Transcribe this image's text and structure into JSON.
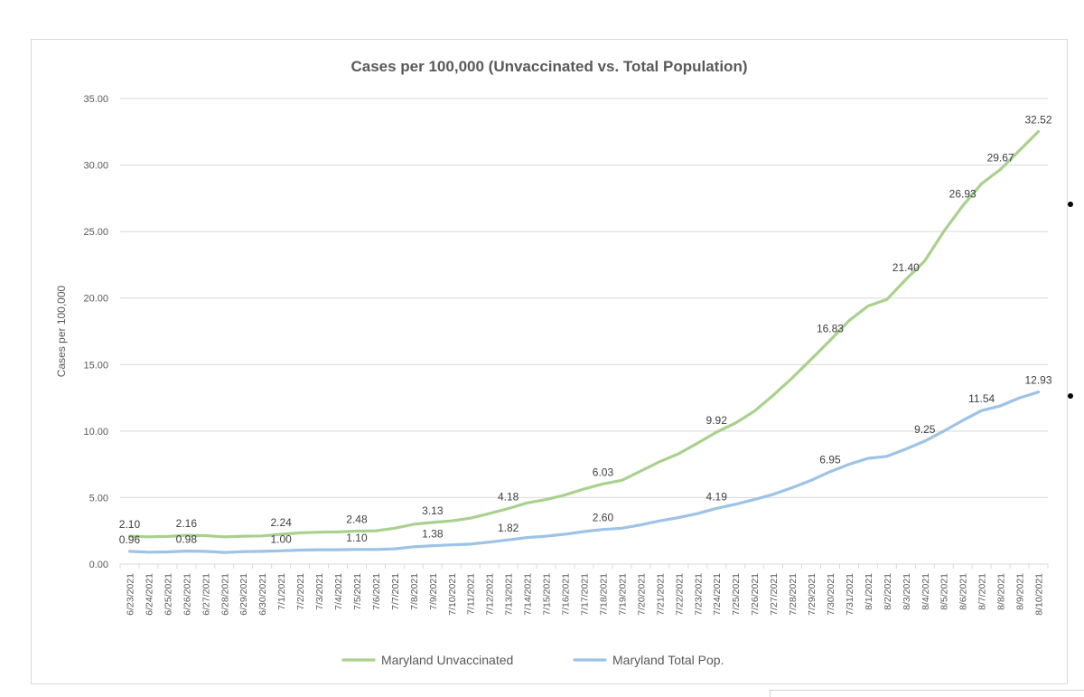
{
  "chart_data": {
    "type": "line",
    "title": "Cases per 100,000 (Unvaccinated vs. Total Population)",
    "xlabel": "",
    "ylabel": "Cases per 100,000",
    "ylim": [
      0,
      35
    ],
    "yticks": [
      "0.00",
      "5.00",
      "10.00",
      "15.00",
      "20.00",
      "25.00",
      "30.00",
      "35.00"
    ],
    "grid": true,
    "legend": "bottom",
    "categories": [
      "6/23/2021",
      "6/24/2021",
      "6/25/2021",
      "6/26/2021",
      "6/27/2021",
      "6/28/2021",
      "6/29/2021",
      "6/30/2021",
      "7/1/2021",
      "7/2/2021",
      "7/3/2021",
      "7/4/2021",
      "7/5/2021",
      "7/6/2021",
      "7/7/2021",
      "7/8/2021",
      "7/9/2021",
      "7/10/2021",
      "7/11/2021",
      "7/12/2021",
      "7/13/2021",
      "7/14/2021",
      "7/15/2021",
      "7/16/2021",
      "7/17/2021",
      "7/18/2021",
      "7/19/2021",
      "7/20/2021",
      "7/21/2021",
      "7/22/2021",
      "7/23/2021",
      "7/24/2021",
      "7/25/2021",
      "7/26/2021",
      "7/27/2021",
      "7/28/2021",
      "7/29/2021",
      "7/30/2021",
      "7/31/2021",
      "8/1/2021",
      "8/2/2021",
      "8/3/2021",
      "8/4/2021",
      "8/5/2021",
      "8/6/2021",
      "8/7/2021",
      "8/8/2021",
      "8/9/2021",
      "8/10/2021"
    ],
    "series": [
      {
        "name": "Maryland Unvaccinated",
        "color": "#a9d18e",
        "values": [
          2.1,
          2.05,
          2.08,
          2.16,
          2.14,
          2.05,
          2.1,
          2.12,
          2.24,
          2.35,
          2.4,
          2.42,
          2.48,
          2.5,
          2.7,
          3.0,
          3.13,
          3.25,
          3.45,
          3.8,
          4.18,
          4.6,
          4.85,
          5.2,
          5.65,
          6.03,
          6.3,
          7.0,
          7.7,
          8.3,
          9.1,
          9.92,
          10.6,
          11.5,
          12.7,
          14.0,
          15.4,
          16.83,
          18.3,
          19.4,
          19.9,
          21.4,
          22.8,
          25.0,
          26.93,
          28.6,
          29.67,
          31.1,
          32.52
        ],
        "labels": {
          "0": "2.10",
          "3": "2.16",
          "8": "2.24",
          "12": "2.48",
          "16": "3.13",
          "20": "4.18",
          "25": "6.03",
          "31": "9.92",
          "37": "16.83",
          "41": "21.40",
          "44": "26.93",
          "46": "29.67",
          "48": "32.52"
        }
      },
      {
        "name": "Maryland Total Pop.",
        "color": "#9dc3e6",
        "values": [
          0.96,
          0.9,
          0.92,
          0.98,
          0.96,
          0.88,
          0.94,
          0.96,
          1.0,
          1.05,
          1.08,
          1.08,
          1.1,
          1.1,
          1.15,
          1.3,
          1.38,
          1.45,
          1.5,
          1.65,
          1.82,
          2.0,
          2.1,
          2.25,
          2.45,
          2.6,
          2.7,
          2.95,
          3.25,
          3.5,
          3.8,
          4.19,
          4.5,
          4.85,
          5.25,
          5.75,
          6.3,
          6.95,
          7.5,
          7.95,
          8.1,
          8.65,
          9.25,
          10.0,
          10.8,
          11.54,
          11.9,
          12.5,
          12.93
        ],
        "labels": {
          "0": "0.96",
          "3": "0.98",
          "8": "1.00",
          "12": "1.10",
          "16": "1.38",
          "20": "1.82",
          "25": "2.60",
          "31": "4.19",
          "37": "6.95",
          "42": "9.25",
          "45": "11.54",
          "48": "12.93"
        }
      }
    ]
  }
}
